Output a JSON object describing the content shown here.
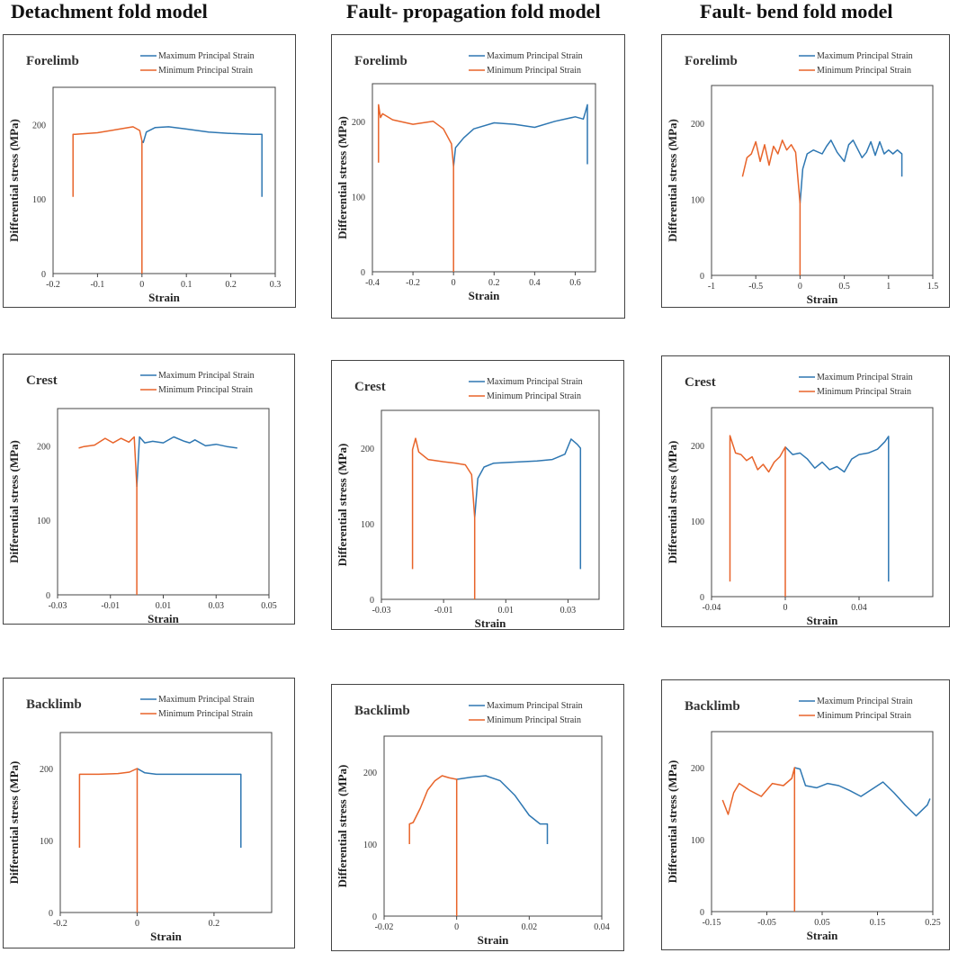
{
  "columns": [
    "Detachment fold model",
    "Fault- propagation  fold model",
    "Fault- bend  fold model"
  ],
  "colors": {
    "max": "#2e77b2",
    "min": "#e8642a"
  },
  "chart_data": [
    {
      "type": "line",
      "panel": "Forelimb",
      "model": "Detachment fold model",
      "xlabel": "Strain",
      "ylabel": "Differential stress (MPa)",
      "xlim": [
        -0.2,
        0.3
      ],
      "ylim": [
        0,
        250
      ],
      "xticks": [
        -0.2,
        -0.1,
        0,
        0.1,
        0.2,
        0.3
      ],
      "xtick_labels": [
        "-0.2",
        "-0.1",
        "0",
        "0.1",
        "0.2",
        "0.3"
      ],
      "yticks": [
        0,
        100,
        200
      ],
      "ytick_labels": [
        "0",
        "100",
        "200"
      ],
      "series": [
        {
          "name": "Maximum Principal Strain",
          "color": "#2e77b2",
          "x": [
            0,
            0.003,
            0.01,
            0.03,
            0.06,
            0.1,
            0.15,
            0.2,
            0.25,
            0.27,
            0.27
          ],
          "y": [
            178,
            176,
            190,
            196,
            197,
            194,
            190,
            188,
            187,
            187,
            103
          ]
        },
        {
          "name": "Minimum Principal Strain",
          "color": "#e8642a",
          "x": [
            0,
            0,
            -0.005,
            -0.02,
            -0.05,
            -0.1,
            -0.15,
            -0.155,
            -0.155
          ],
          "y": [
            0,
            178,
            192,
            197,
            194,
            189,
            187,
            187,
            103
          ]
        }
      ]
    },
    {
      "type": "line",
      "panel": "Forelimb",
      "model": "Fault- propagation  fold model",
      "xlabel": "Strain",
      "ylabel": "Differential stress (MPa)",
      "xlim": [
        -0.4,
        0.7
      ],
      "ylim": [
        0,
        250
      ],
      "xticks": [
        -0.4,
        -0.2,
        0,
        0.2,
        0.4,
        0.6
      ],
      "xtick_labels": [
        "-0.4",
        "-0.2",
        "0",
        "0.2",
        "0.4",
        "0.6"
      ],
      "yticks": [
        0,
        100,
        200
      ],
      "ytick_labels": [
        "0",
        "100",
        "200"
      ],
      "series": [
        {
          "name": "Maximum Principal Strain",
          "color": "#2e77b2",
          "x": [
            0,
            0.01,
            0.05,
            0.1,
            0.2,
            0.3,
            0.4,
            0.5,
            0.6,
            0.64,
            0.65,
            0.66,
            0.66
          ],
          "y": [
            140,
            165,
            178,
            190,
            198,
            196,
            192,
            200,
            206,
            203,
            212,
            222,
            143
          ]
        },
        {
          "name": "Minimum Principal Strain",
          "color": "#e8642a",
          "x": [
            0,
            0,
            -0.01,
            -0.05,
            -0.1,
            -0.2,
            -0.3,
            -0.35,
            -0.36,
            -0.37,
            -0.37
          ],
          "y": [
            0,
            140,
            170,
            190,
            200,
            196,
            202,
            210,
            205,
            222,
            145
          ]
        }
      ]
    },
    {
      "type": "line",
      "panel": "Forelimb",
      "model": "Fault- bend  fold model",
      "xlabel": "Strain",
      "ylabel": "Differential stress (MPa)",
      "xlim": [
        -1,
        1.5
      ],
      "ylim": [
        0,
        250
      ],
      "xticks": [
        -1,
        -0.5,
        0,
        0.5,
        1,
        1.5
      ],
      "xtick_labels": [
        "-1",
        "-0.5",
        "0",
        "0.5",
        "1",
        "1.5"
      ],
      "yticks": [
        0,
        100,
        200
      ],
      "ytick_labels": [
        "0",
        "100",
        "200"
      ],
      "series": [
        {
          "name": "Maximum Principal Strain",
          "color": "#2e77b2",
          "x": [
            0,
            0.03,
            0.08,
            0.15,
            0.25,
            0.3,
            0.35,
            0.42,
            0.5,
            0.55,
            0.6,
            0.7,
            0.75,
            0.8,
            0.85,
            0.9,
            0.95,
            1.0,
            1.05,
            1.1,
            1.15,
            1.15
          ],
          "y": [
            95,
            140,
            160,
            165,
            160,
            170,
            178,
            162,
            150,
            172,
            178,
            155,
            162,
            176,
            158,
            176,
            160,
            165,
            160,
            165,
            160,
            130
          ]
        },
        {
          "name": "Minimum Principal Strain",
          "color": "#e8642a",
          "x": [
            0,
            0,
            -0.05,
            -0.1,
            -0.15,
            -0.2,
            -0.25,
            -0.3,
            -0.35,
            -0.4,
            -0.45,
            -0.5,
            -0.55,
            -0.6,
            -0.65
          ],
          "y": [
            0,
            95,
            162,
            172,
            165,
            178,
            160,
            170,
            145,
            172,
            150,
            176,
            160,
            155,
            130
          ]
        }
      ]
    },
    {
      "type": "line",
      "panel": "Crest",
      "model": "Detachment fold model",
      "xlabel": "Strain",
      "ylabel": "Differential stress (MPa)",
      "xlim": [
        -0.03,
        0.05
      ],
      "ylim": [
        0,
        250
      ],
      "xticks": [
        -0.03,
        -0.01,
        0.01,
        0.03,
        0.05
      ],
      "xtick_labels": [
        "-0.03",
        "-0.01",
        "0.01",
        "0.03",
        "0.05"
      ],
      "yticks": [
        0,
        100,
        200
      ],
      "ytick_labels": [
        "0",
        "100",
        "200"
      ],
      "series": [
        {
          "name": "Maximum Principal Strain",
          "color": "#2e77b2",
          "x": [
            0,
            0.001,
            0.003,
            0.006,
            0.01,
            0.014,
            0.018,
            0.02,
            0.022,
            0.026,
            0.03,
            0.034,
            0.038
          ],
          "y": [
            145,
            212,
            204,
            206,
            204,
            212,
            206,
            204,
            208,
            200,
            202,
            199,
            197
          ]
        },
        {
          "name": "Minimum Principal Strain",
          "color": "#e8642a",
          "x": [
            0,
            0,
            -0.001,
            -0.003,
            -0.006,
            -0.009,
            -0.012,
            -0.016,
            -0.02,
            -0.022
          ],
          "y": [
            0,
            145,
            212,
            205,
            210,
            204,
            210,
            201,
            199,
            197
          ]
        }
      ]
    },
    {
      "type": "line",
      "panel": "Crest",
      "model": "Fault- propagation  fold model",
      "xlabel": "Strain",
      "ylabel": "Differential stress (MPa)",
      "xlim": [
        -0.03,
        0.04
      ],
      "ylim": [
        0,
        250
      ],
      "xticks": [
        -0.03,
        -0.01,
        0.01,
        0.03
      ],
      "xtick_labels": [
        "-0.03",
        "-0.01",
        "0.01",
        "0.03"
      ],
      "yticks": [
        0,
        100,
        200
      ],
      "ytick_labels": [
        "0",
        "100",
        "200"
      ],
      "series": [
        {
          "name": "Maximum Principal Strain",
          "color": "#2e77b2",
          "x": [
            0,
            0.001,
            0.003,
            0.006,
            0.01,
            0.015,
            0.02,
            0.025,
            0.029,
            0.031,
            0.033,
            0.034,
            0.034
          ],
          "y": [
            108,
            160,
            175,
            180,
            181,
            182,
            183,
            185,
            192,
            212,
            205,
            200,
            40
          ]
        },
        {
          "name": "Minimum Principal Strain",
          "color": "#e8642a",
          "x": [
            0,
            0,
            -0.001,
            -0.003,
            -0.006,
            -0.01,
            -0.015,
            -0.018,
            -0.019,
            -0.02,
            -0.02
          ],
          "y": [
            0,
            108,
            165,
            178,
            180,
            182,
            185,
            195,
            213,
            198,
            40
          ]
        }
      ]
    },
    {
      "type": "line",
      "panel": "Crest",
      "model": "Fault- bend  fold model",
      "xlabel": "Strain",
      "ylabel": "Differential stress (MPa)",
      "xlim": [
        -0.04,
        0.08
      ],
      "ylim": [
        0,
        250
      ],
      "xticks": [
        -0.04,
        0,
        0.04
      ],
      "xtick_labels": [
        "-0.04",
        "0",
        "0.04"
      ],
      "yticks": [
        0,
        100,
        200
      ],
      "ytick_labels": [
        "0",
        "100",
        "200"
      ],
      "series": [
        {
          "name": "Maximum Principal Strain",
          "color": "#2e77b2",
          "x": [
            0,
            0.004,
            0.008,
            0.012,
            0.016,
            0.02,
            0.024,
            0.028,
            0.032,
            0.036,
            0.04,
            0.045,
            0.05,
            0.054,
            0.056,
            0.056
          ],
          "y": [
            198,
            188,
            190,
            182,
            170,
            178,
            168,
            172,
            165,
            182,
            188,
            190,
            195,
            205,
            212,
            20
          ]
        },
        {
          "name": "Minimum Principal Strain",
          "color": "#e8642a",
          "x": [
            0,
            0,
            -0.003,
            -0.006,
            -0.009,
            -0.012,
            -0.015,
            -0.018,
            -0.021,
            -0.024,
            -0.027,
            -0.03,
            -0.03
          ],
          "y": [
            0,
            198,
            185,
            178,
            165,
            175,
            168,
            185,
            180,
            188,
            190,
            213,
            20
          ]
        }
      ]
    },
    {
      "type": "line",
      "panel": "Backlimb",
      "model": "Detachment fold model",
      "xlabel": "Strain",
      "ylabel": "Differential stress (MPa)",
      "xlim": [
        -0.2,
        0.35
      ],
      "ylim": [
        0,
        250
      ],
      "xticks": [
        -0.2,
        0,
        0.2
      ],
      "xtick_labels": [
        "-0.2",
        "0",
        "0.2"
      ],
      "yticks": [
        0,
        100,
        200
      ],
      "ytick_labels": [
        "0",
        "100",
        "200"
      ],
      "series": [
        {
          "name": "Maximum Principal Strain",
          "color": "#2e77b2",
          "x": [
            0,
            0.02,
            0.05,
            0.1,
            0.15,
            0.2,
            0.27,
            0.27
          ],
          "y": [
            200,
            194,
            192,
            192,
            192,
            192,
            192,
            90
          ]
        },
        {
          "name": "Minimum Principal Strain",
          "color": "#e8642a",
          "x": [
            0,
            0,
            -0.02,
            -0.05,
            -0.1,
            -0.15,
            -0.15
          ],
          "y": [
            0,
            200,
            195,
            193,
            192,
            192,
            90
          ]
        }
      ]
    },
    {
      "type": "line",
      "panel": "Backlimb",
      "model": "Fault- propagation  fold model",
      "xlabel": "Strain",
      "ylabel": "Differential stress (MPa)",
      "xlim": [
        -0.02,
        0.04
      ],
      "ylim": [
        0,
        250
      ],
      "xticks": [
        -0.02,
        0,
        0.02,
        0.04
      ],
      "xtick_labels": [
        "-0.02",
        "0",
        "0.02",
        "0.04"
      ],
      "yticks": [
        0,
        100,
        200
      ],
      "ytick_labels": [
        "0",
        "100",
        "200"
      ],
      "series": [
        {
          "name": "Maximum Principal Strain",
          "color": "#2e77b2",
          "x": [
            0,
            0.004,
            0.008,
            0.012,
            0.016,
            0.02,
            0.023,
            0.025,
            0.025
          ],
          "y": [
            190,
            193,
            195,
            188,
            168,
            140,
            128,
            128,
            100
          ]
        },
        {
          "name": "Minimum Principal Strain",
          "color": "#e8642a",
          "x": [
            0,
            0,
            -0.002,
            -0.004,
            -0.006,
            -0.008,
            -0.01,
            -0.012,
            -0.013,
            -0.013
          ],
          "y": [
            0,
            190,
            192,
            195,
            188,
            175,
            150,
            130,
            128,
            100
          ]
        }
      ]
    },
    {
      "type": "line",
      "panel": "Backlimb",
      "model": "Fault- bend  fold model",
      "xlabel": "Strain",
      "ylabel": "Differential stress (MPa)",
      "xlim": [
        -0.15,
        0.25
      ],
      "ylim": [
        0,
        250
      ],
      "xticks": [
        -0.15,
        -0.05,
        0.05,
        0.15,
        0.25
      ],
      "xtick_labels": [
        "-0.15",
        "-0.05",
        "0.05",
        "0.15",
        "0.25"
      ],
      "yticks": [
        0,
        100,
        200
      ],
      "ytick_labels": [
        "0",
        "100",
        "200"
      ],
      "series": [
        {
          "name": "Maximum Principal Strain",
          "color": "#2e77b2",
          "x": [
            0,
            0.01,
            0.02,
            0.04,
            0.06,
            0.08,
            0.1,
            0.12,
            0.14,
            0.16,
            0.18,
            0.2,
            0.22,
            0.24,
            0.245
          ],
          "y": [
            200,
            198,
            175,
            172,
            178,
            175,
            168,
            160,
            170,
            180,
            165,
            148,
            133,
            148,
            157
          ]
        },
        {
          "name": "Minimum Principal Strain",
          "color": "#e8642a",
          "x": [
            0,
            0,
            -0.005,
            -0.02,
            -0.04,
            -0.06,
            -0.08,
            -0.1,
            -0.11,
            -0.12,
            -0.13
          ],
          "y": [
            0,
            200,
            185,
            175,
            178,
            160,
            168,
            178,
            165,
            135,
            155
          ]
        }
      ]
    }
  ]
}
